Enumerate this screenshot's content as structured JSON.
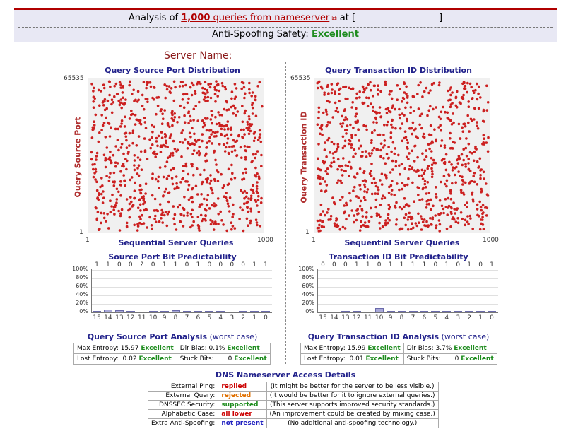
{
  "header": {
    "prefix": "Analysis of",
    "count": "1,000",
    "link_text": "queries from nameserver",
    "at_text": "at [",
    "bracket_close": "]",
    "safety_label": "Anti-Spoofing Safety:",
    "safety_value": "Excellent"
  },
  "server_name_label": "Server Name:",
  "left": {
    "title": "Query Source Port Distribution",
    "ylabel": "Query Source Port",
    "xlabel": "Sequential Server Queries",
    "ytick_top": "65535",
    "ytick_bottom": "1",
    "xtick_left": "1",
    "xtick_right": "1000",
    "bit_title": "Source Port Bit Predictability",
    "bit_values": [
      "1",
      "1",
      "0",
      "0",
      "?",
      "0",
      "1",
      "1",
      "0",
      "1",
      "0",
      "0",
      "0",
      "0",
      "1",
      "1"
    ],
    "bars": [
      3,
      7,
      5,
      2,
      0,
      3,
      4,
      5,
      3,
      4,
      2,
      2,
      0,
      4,
      4,
      3
    ],
    "analysis_title": "Query Source Port Analysis",
    "worst": "(worst case)",
    "rows": [
      {
        "k1": "Max Entropy:",
        "v1": "15.97",
        "r1": "Excellent",
        "k2": "Dir Bias:",
        "v2": "0.1%",
        "r2": "Excellent"
      },
      {
        "k1": "Lost Entropy:",
        "v1": "0.02",
        "r1": "Excellent",
        "k2": "Stuck Bits:",
        "v2": "0",
        "r2": "Excellent"
      }
    ]
  },
  "right": {
    "title": "Query Transaction ID Distribution",
    "ylabel": "Query Transaction ID",
    "xlabel": "Sequential Server Queries",
    "ytick_top": "65535",
    "ytick_bottom": "1",
    "xtick_left": "1",
    "xtick_right": "1000",
    "bit_title": "Transaction ID Bit Predictability",
    "bit_values": [
      "0",
      "0",
      "0",
      "1",
      "1",
      "0",
      "1",
      "1",
      "1",
      "1",
      "0",
      "1",
      "0",
      "1",
      "0",
      "1"
    ],
    "bars": [
      0,
      0,
      2,
      1,
      0,
      10,
      2,
      2,
      4,
      3,
      2,
      2,
      3,
      4,
      2,
      2
    ],
    "analysis_title": "Query Transaction ID Analysis",
    "worst": "(worst case)",
    "rows": [
      {
        "k1": "Max Entropy:",
        "v1": "15.99",
        "r1": "Excellent",
        "k2": "Dir Bias:",
        "v2": "3.7%",
        "r2": "Excellent"
      },
      {
        "k1": "Lost Entropy:",
        "v1": "0.01",
        "r1": "Excellent",
        "k2": "Stuck Bits:",
        "v2": "0",
        "r2": "Excellent"
      }
    ]
  },
  "pct_labels": [
    "100%",
    "80%",
    "60%",
    "40%",
    "20%",
    "0%"
  ],
  "bit_labels": [
    "15",
    "14",
    "13",
    "12",
    "11",
    "10",
    "9",
    "8",
    "7",
    "6",
    "5",
    "4",
    "3",
    "2",
    "1",
    "0"
  ],
  "dns": {
    "title": "DNS Nameserver Access Details",
    "rows": [
      {
        "k": "External Ping:",
        "v": "replied",
        "c": "red",
        "n": "(It might be better for the server to be less visible.)"
      },
      {
        "k": "External Query:",
        "v": "rejected",
        "c": "orange",
        "n": "(It would be better for it to ignore external queries.)"
      },
      {
        "k": "DNSSEC Security:",
        "v": "supported",
        "c": "green",
        "n": "(This server supports improved security standards.)"
      },
      {
        "k": "Alphabetic Case:",
        "v": "all lower",
        "c": "red",
        "n": "(An improvement could be created by mixing case.)"
      },
      {
        "k": "Extra Anti-Spoofing:",
        "v": "not present",
        "c": "blue",
        "n": "(No additional anti-spoofing technology.)"
      }
    ]
  },
  "colors": {
    "dot": "#cc2020",
    "excellent": "#1e8c1e",
    "accent": "#b00000"
  }
}
